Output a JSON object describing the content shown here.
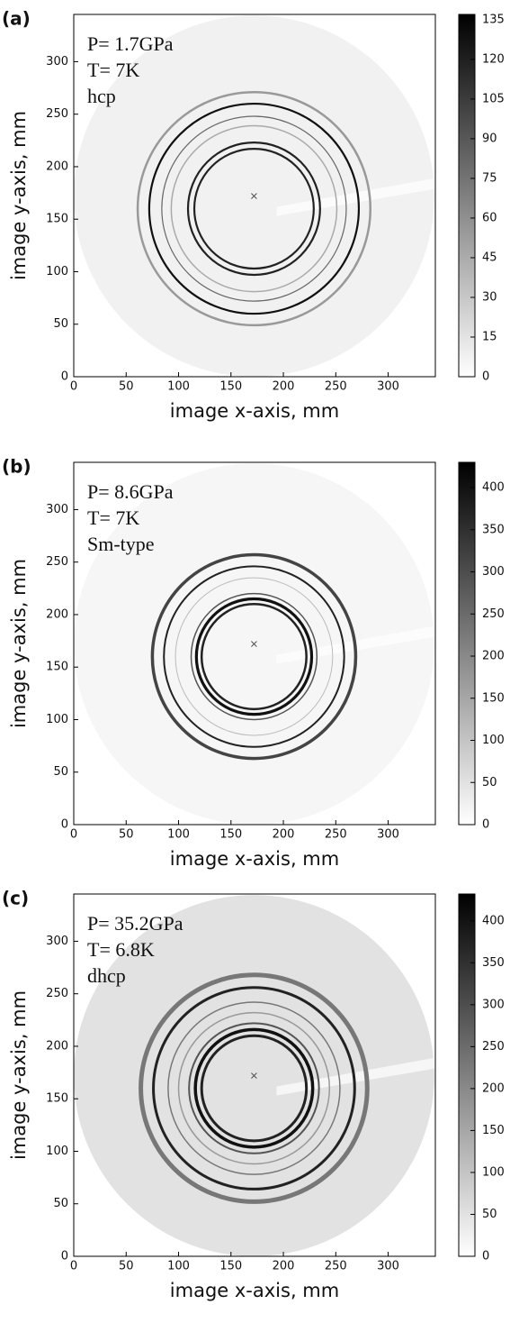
{
  "chart_data": [
    {
      "type": "image",
      "panel_label": "(a)",
      "annotation": [
        "P= 1.7GPa",
        "T= 7K",
        "hcp"
      ],
      "xlabel": "image x-axis, mm",
      "ylabel": "image y-axis, mm",
      "xlim": [
        0,
        345
      ],
      "ylim": [
        0,
        345
      ],
      "xticks": [
        0,
        50,
        100,
        150,
        200,
        250,
        300
      ],
      "yticks": [
        0,
        50,
        100,
        150,
        200,
        250,
        300
      ],
      "clim": [
        0,
        137
      ],
      "cticks": [
        0,
        15,
        30,
        45,
        60,
        75,
        90,
        105,
        120,
        135
      ]
    },
    {
      "type": "image",
      "panel_label": "(b)",
      "annotation": [
        "P= 8.6GPa",
        "T= 7K",
        "Sm-type"
      ],
      "xlabel": "image x-axis, mm",
      "ylabel": "image y-axis, mm",
      "xlim": [
        0,
        345
      ],
      "ylim": [
        0,
        345
      ],
      "xticks": [
        0,
        50,
        100,
        150,
        200,
        250,
        300
      ],
      "yticks": [
        0,
        50,
        100,
        150,
        200,
        250,
        300
      ],
      "clim": [
        0,
        430
      ],
      "cticks": [
        0,
        50,
        100,
        150,
        200,
        250,
        300,
        350,
        400
      ]
    },
    {
      "type": "image",
      "panel_label": "(c)",
      "annotation": [
        "P= 35.2GPa",
        "T= 6.8K",
        "dhcp"
      ],
      "xlabel": "image x-axis, mm",
      "ylabel": "image y-axis, mm",
      "xlim": [
        0,
        345
      ],
      "ylim": [
        0,
        345
      ],
      "xticks": [
        0,
        50,
        100,
        150,
        200,
        250,
        300
      ],
      "yticks": [
        0,
        50,
        100,
        150,
        200,
        250,
        300
      ],
      "clim": [
        0,
        432
      ],
      "cticks": [
        0,
        50,
        100,
        150,
        200,
        250,
        300,
        350,
        400
      ]
    }
  ]
}
